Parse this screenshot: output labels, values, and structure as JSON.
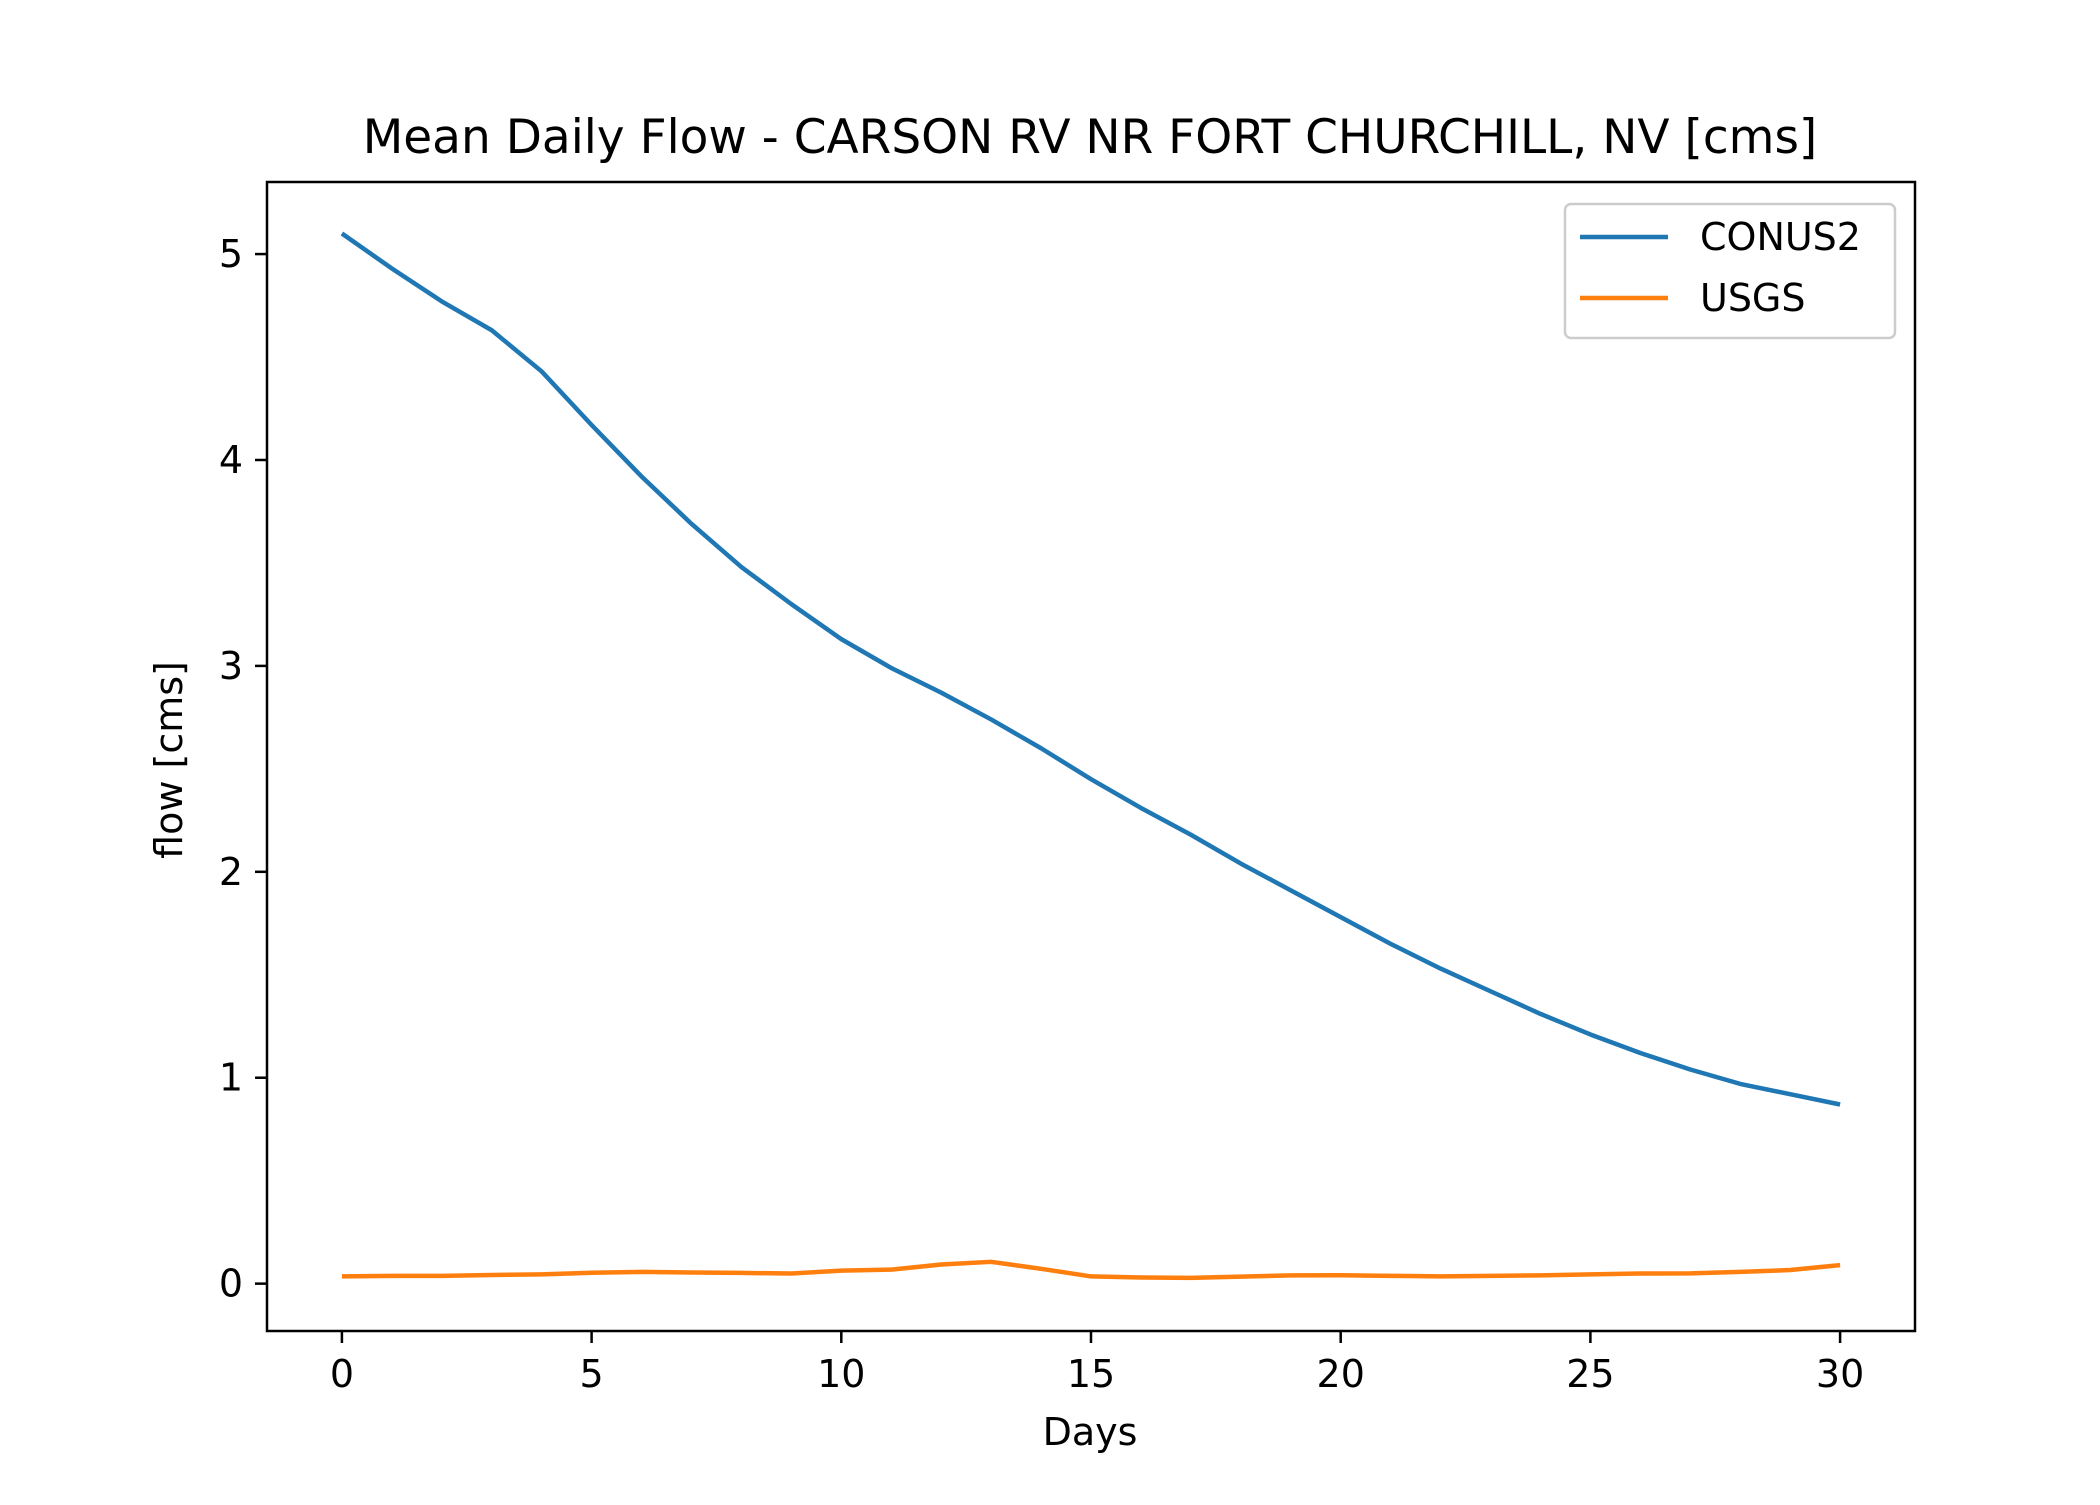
{
  "chart_data": {
    "type": "line",
    "title": "Mean Daily Flow - CARSON RV NR FORT CHURCHILL, NV [cms]",
    "xlabel": "Days",
    "ylabel": "flow [cms]",
    "xlim": [
      -1.5,
      31.5
    ],
    "ylim": [
      -0.23,
      5.35
    ],
    "xticks": [
      0,
      5,
      10,
      15,
      20,
      25,
      30
    ],
    "yticks": [
      0,
      1,
      2,
      3,
      4,
      5
    ],
    "grid": false,
    "legend": "upper right",
    "x": [
      0,
      1,
      2,
      3,
      4,
      5,
      6,
      7,
      8,
      9,
      10,
      11,
      12,
      13,
      14,
      15,
      16,
      17,
      18,
      19,
      20,
      21,
      22,
      23,
      24,
      25,
      26,
      27,
      28,
      29,
      30
    ],
    "series": [
      {
        "name": "CONUS2",
        "color": "#1f77b4",
        "values": [
          5.1,
          4.93,
          4.77,
          4.63,
          4.43,
          4.17,
          3.92,
          3.69,
          3.48,
          3.3,
          3.13,
          2.99,
          2.87,
          2.74,
          2.6,
          2.45,
          2.31,
          2.18,
          2.04,
          1.91,
          1.78,
          1.65,
          1.53,
          1.42,
          1.31,
          1.21,
          1.12,
          1.04,
          0.97,
          0.92,
          0.87
        ]
      },
      {
        "name": "USGS",
        "color": "#ff7f0e",
        "values": [
          0.035,
          0.038,
          0.038,
          0.042,
          0.045,
          0.053,
          0.057,
          0.054,
          0.052,
          0.049,
          0.063,
          0.068,
          0.093,
          0.106,
          0.072,
          0.035,
          0.03,
          0.028,
          0.034,
          0.04,
          0.041,
          0.038,
          0.035,
          0.038,
          0.04,
          0.045,
          0.049,
          0.05,
          0.057,
          0.066,
          0.09
        ]
      }
    ]
  }
}
